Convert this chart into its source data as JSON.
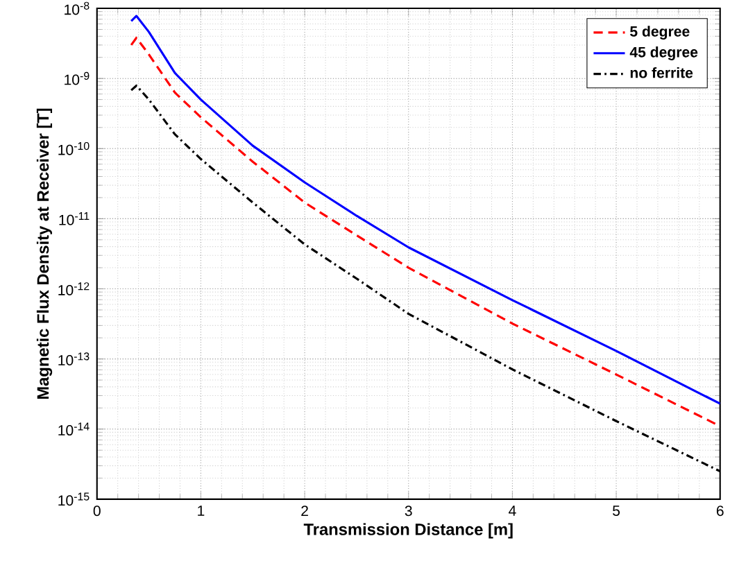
{
  "chart_data": {
    "type": "line",
    "xlabel": "Transmission Distance [m]",
    "ylabel": "Magnetic Flux Density at Receiver [T]",
    "log": "y",
    "grid": true,
    "legend": "top right",
    "xlim": [
      0,
      6
    ],
    "xticks": [
      0,
      1,
      2,
      3,
      4,
      5,
      6
    ],
    "ylim": [
      1e-15,
      1e-08
    ],
    "yticks": [
      {
        "value": 1e-15,
        "label": "10$^{-15}$"
      },
      {
        "value": 1e-14,
        "label": "10$^{-14}$"
      },
      {
        "value": 1e-13,
        "label": "10$^{-13}$"
      },
      {
        "value": 1e-12,
        "label": "10$^{-12}$"
      },
      {
        "value": 1e-11,
        "label": "10$^{-11}$"
      },
      {
        "value": 1e-10,
        "label": "10$^{-10}$"
      },
      {
        "value": 1e-09,
        "label": "10$^{-9}$"
      },
      {
        "value": 1e-08,
        "label": "10$^{-8}$"
      }
    ],
    "x": [
      0.33,
      0.38,
      0.5,
      0.75,
      1,
      1.5,
      2,
      2.5,
      3,
      4,
      5,
      6
    ],
    "series": [
      {
        "name": "5 degree",
        "color": "#ff0000",
        "line_style": "dashed",
        "values": [
          3e-09,
          3.8e-09,
          2.2e-09,
          6.3e-10,
          2.8e-10,
          6.5e-11,
          1.7e-11,
          5.8e-12,
          2e-12,
          3.2e-13,
          6e-14,
          1.1e-14
        ]
      },
      {
        "name": "45 degree",
        "color": "#0000ff",
        "line_style": "solid",
        "values": [
          6.6e-09,
          7.8e-09,
          4.6e-09,
          1.2e-09,
          5e-10,
          1.1e-10,
          3.3e-11,
          1.1e-11,
          3.9e-12,
          6.9e-13,
          1.3e-13,
          2.3e-14
        ]
      },
      {
        "name": "no ferrite",
        "color": "#000000",
        "line_style": "dashdot",
        "values": [
          6.8e-10,
          7.9e-10,
          5e-10,
          1.6e-10,
          7.1e-11,
          1.7e-11,
          4.3e-12,
          1.4e-12,
          4.4e-13,
          7.1e-14,
          1.3e-14,
          2.5e-15
        ]
      }
    ]
  }
}
